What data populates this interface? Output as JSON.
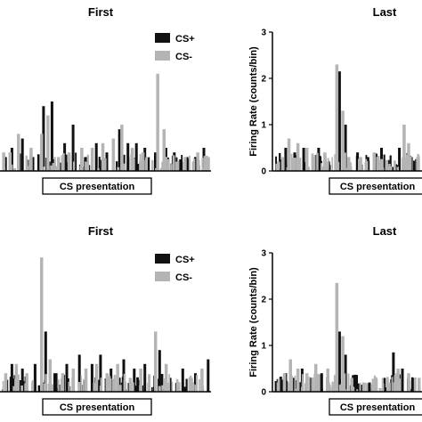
{
  "legend": {
    "cs_plus": "CS+",
    "cs_minus": "CS-"
  },
  "colors": {
    "cs_plus": "#111111",
    "cs_minus": "#b4b4b4"
  },
  "chart_data": [
    {
      "type": "bar",
      "title": "First",
      "legend_position": "top-right",
      "xlabel": "CS presentation",
      "ylabel": "",
      "ylim": [
        0,
        3
      ],
      "series": [
        {
          "name": "CS+",
          "peaks": [
            [
              0.02,
              0.3
            ],
            [
              0.05,
              0.5
            ],
            [
              0.1,
              0.7
            ],
            [
              0.15,
              0.3
            ],
            [
              0.2,
              1.4
            ],
            [
              0.24,
              1.5
            ],
            [
              0.3,
              0.6
            ],
            [
              0.34,
              1.0
            ],
            [
              0.4,
              0.3
            ],
            [
              0.45,
              0.6
            ],
            [
              0.5,
              0.4
            ],
            [
              0.56,
              0.9
            ],
            [
              0.6,
              0.6
            ],
            [
              0.64,
              0.6
            ],
            [
              0.68,
              0.5
            ],
            [
              0.73,
              0.4
            ],
            [
              0.78,
              0.5
            ],
            [
              0.82,
              0.4
            ],
            [
              0.88,
              0.3
            ],
            [
              0.92,
              0.3
            ],
            [
              0.96,
              0.5
            ]
          ]
        },
        {
          "name": "CS-",
          "peaks": [
            [
              0.01,
              0.4
            ],
            [
              0.04,
              0.4
            ],
            [
              0.08,
              0.8
            ],
            [
              0.14,
              0.5
            ],
            [
              0.19,
              0.8
            ],
            [
              0.22,
              1.2
            ],
            [
              0.27,
              0.3
            ],
            [
              0.32,
              0.4
            ],
            [
              0.38,
              0.5
            ],
            [
              0.43,
              0.5
            ],
            [
              0.48,
              0.6
            ],
            [
              0.53,
              0.7
            ],
            [
              0.57,
              1.0
            ],
            [
              0.62,
              0.5
            ],
            [
              0.67,
              0.4
            ],
            [
              0.74,
              2.1
            ],
            [
              0.77,
              0.9
            ],
            [
              0.83,
              0.2
            ],
            [
              0.87,
              0.3
            ],
            [
              0.93,
              0.4
            ],
            [
              0.98,
              0.3
            ]
          ]
        }
      ]
    },
    {
      "type": "bar",
      "title": "Last",
      "xlabel": "CS presentation",
      "ylabel": "Firing Rate (counts/bin)",
      "ylim": [
        0,
        3
      ],
      "yticks": [
        0,
        1,
        2,
        3
      ],
      "series": [
        {
          "name": "CS+",
          "peaks": [
            [
              0.08,
              0.5
            ],
            [
              0.14,
              0.4
            ],
            [
              0.2,
              0.5
            ],
            [
              0.3,
              0.5
            ],
            [
              0.44,
              2.15
            ],
            [
              0.48,
              1.0
            ],
            [
              0.56,
              0.4
            ],
            [
              0.63,
              0.3
            ],
            [
              0.72,
              0.5
            ],
            [
              0.84,
              0.5
            ],
            [
              0.92,
              0.3
            ]
          ]
        },
        {
          "name": "CS-",
          "peaks": [
            [
              0.03,
              0.2
            ],
            [
              0.06,
              0.3
            ],
            [
              0.1,
              0.7
            ],
            [
              0.16,
              0.6
            ],
            [
              0.22,
              0.5
            ],
            [
              0.26,
              0.3
            ],
            [
              0.34,
              0.4
            ],
            [
              0.42,
              2.3
            ],
            [
              0.46,
              1.3
            ],
            [
              0.5,
              0.3
            ],
            [
              0.58,
              0.3
            ],
            [
              0.67,
              0.4
            ],
            [
              0.78,
              0.1
            ],
            [
              0.87,
              1.0
            ],
            [
              0.9,
              0.6
            ],
            [
              0.96,
              0.3
            ]
          ]
        }
      ]
    },
    {
      "type": "bar",
      "title": "First",
      "legend_position": "top-right",
      "xlabel": "CS presentation",
      "ylabel": "",
      "ylim": [
        0,
        3
      ],
      "series": [
        {
          "name": "CS+",
          "peaks": [
            [
              0.05,
              0.6
            ],
            [
              0.1,
              0.5
            ],
            [
              0.16,
              0.6
            ],
            [
              0.21,
              1.3
            ],
            [
              0.26,
              0.4
            ],
            [
              0.31,
              0.6
            ],
            [
              0.37,
              0.8
            ],
            [
              0.43,
              0.6
            ],
            [
              0.47,
              0.8
            ],
            [
              0.52,
              0.5
            ],
            [
              0.58,
              0.7
            ],
            [
              0.63,
              0.5
            ],
            [
              0.68,
              0.6
            ],
            [
              0.75,
              0.9
            ],
            [
              0.8,
              0.3
            ],
            [
              0.86,
              0.5
            ],
            [
              0.92,
              0.4
            ],
            [
              0.98,
              0.7
            ]
          ]
        },
        {
          "name": "CS-",
          "peaks": [
            [
              0.02,
              0.4
            ],
            [
              0.07,
              0.6
            ],
            [
              0.12,
              0.4
            ],
            [
              0.19,
              2.9
            ],
            [
              0.23,
              0.7
            ],
            [
              0.29,
              0.4
            ],
            [
              0.34,
              0.5
            ],
            [
              0.4,
              0.5
            ],
            [
              0.45,
              0.6
            ],
            [
              0.5,
              0.4
            ],
            [
              0.55,
              0.6
            ],
            [
              0.61,
              0.3
            ],
            [
              0.66,
              0.5
            ],
            [
              0.73,
              1.3
            ],
            [
              0.78,
              0.6
            ],
            [
              0.84,
              0.2
            ],
            [
              0.9,
              0.3
            ],
            [
              0.95,
              0.5
            ]
          ]
        }
      ]
    },
    {
      "type": "bar",
      "title": "Last",
      "xlabel": "CS presentation",
      "ylabel": "Firing Rate (counts/bin)",
      "ylim": [
        0,
        3
      ],
      "yticks": [
        0,
        1,
        2,
        3
      ],
      "series": [
        {
          "name": "CS+",
          "peaks": [
            [
              0.08,
              0.4
            ],
            [
              0.13,
              0.3
            ],
            [
              0.19,
              0.5
            ],
            [
              0.25,
              0.3
            ],
            [
              0.32,
              0.4
            ],
            [
              0.44,
              1.3
            ],
            [
              0.48,
              0.8
            ],
            [
              0.55,
              0.3
            ],
            [
              0.64,
              0.2
            ],
            [
              0.74,
              0.3
            ],
            [
              0.8,
              0.85
            ],
            [
              0.86,
              0.5
            ],
            [
              0.94,
              0.3
            ]
          ]
        },
        {
          "name": "CS-",
          "peaks": [
            [
              0.03,
              0.2
            ],
            [
              0.07,
              0.4
            ],
            [
              0.11,
              0.7
            ],
            [
              0.16,
              0.5
            ],
            [
              0.22,
              0.4
            ],
            [
              0.28,
              0.6
            ],
            [
              0.36,
              0.5
            ],
            [
              0.42,
              2.35
            ],
            [
              0.46,
              1.2
            ],
            [
              0.52,
              0.3
            ],
            [
              0.6,
              0.2
            ],
            [
              0.68,
              0.3
            ],
            [
              0.77,
              0.2
            ],
            [
              0.83,
              0.5
            ],
            [
              0.9,
              0.4
            ],
            [
              0.97,
              0.3
            ]
          ]
        }
      ]
    }
  ]
}
